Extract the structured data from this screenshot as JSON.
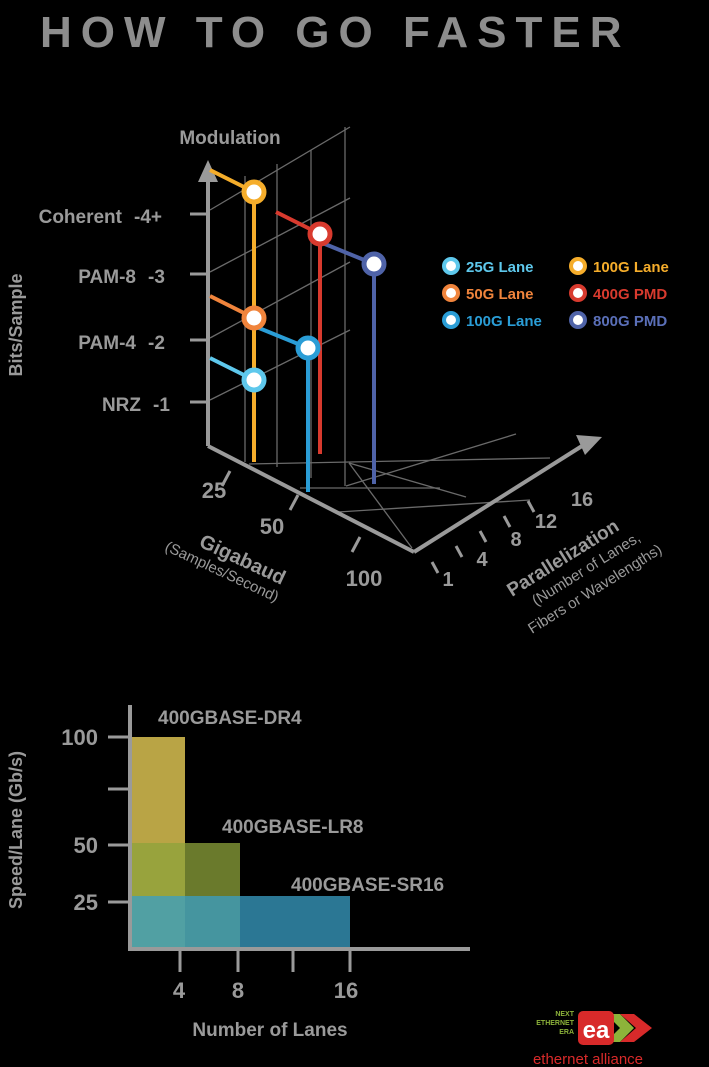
{
  "title": "HOW TO GO FASTER",
  "chart_data": [
    {
      "type": "scatter",
      "subtype": "3d-stem",
      "z_axis": {
        "title": "Modulation",
        "side_label": "Bits/Sample",
        "ticks": [
          {
            "name": "NRZ",
            "value": 1,
            "label": "-1"
          },
          {
            "name": "PAM-4",
            "value": 2,
            "label": "-2"
          },
          {
            "name": "PAM-8",
            "value": 3,
            "label": "-3"
          },
          {
            "name": "Coherent",
            "value": 4,
            "label": "-4+"
          }
        ]
      },
      "x_axis": {
        "title": "Gigabaud",
        "subtitle": "(Samples/Second)",
        "ticks": [
          "25",
          "50",
          "100"
        ]
      },
      "y_axis": {
        "title": "Parallelization",
        "subtitle_line1": "(Number of Lanes,",
        "subtitle_line2": "Fibers or Wavelengths)",
        "ticks": [
          "1",
          "4",
          "8",
          "12",
          "16"
        ]
      },
      "legend": {
        "placement": "right",
        "items": [
          {
            "label": "25G Lane",
            "color": "#5ec8ec",
            "fill": "#ffffff"
          },
          {
            "label": "100G Lane",
            "color": "#f5ad2b",
            "fill": "#ffffff"
          },
          {
            "label": "50G Lane",
            "color": "#f0843c",
            "fill": "#ffffff"
          },
          {
            "label": "400G PMD",
            "color": "#d83a2e",
            "fill": "#ffffff"
          },
          {
            "label": "100G Lane",
            "color": "#2a9dd6",
            "fill": "#ffffff"
          },
          {
            "label": "800G PMD",
            "color": "#4f63a8",
            "fill": "#ffffff"
          }
        ]
      },
      "points": [
        {
          "series": "25G Lane",
          "gigabaud": 25,
          "lanes": 1,
          "bits_per_sample": 1,
          "color": "#5ec8ec"
        },
        {
          "series": "50G Lane",
          "gigabaud": 25,
          "lanes": 1,
          "bits_per_sample": 2,
          "color": "#f0843c"
        },
        {
          "series": "100G Lane",
          "gigabaud": 25,
          "lanes": 1,
          "bits_per_sample": 4,
          "color": "#f5ad2b"
        },
        {
          "series": "100G Lane",
          "gigabaud": 50,
          "lanes": 1,
          "bits_per_sample": 2,
          "color": "#2a9dd6"
        },
        {
          "series": "400G PMD",
          "gigabaud": 25,
          "lanes": 4,
          "bits_per_sample": 3,
          "color": "#d83a2e"
        },
        {
          "series": "800G PMD",
          "gigabaud": 50,
          "lanes": 4,
          "bits_per_sample": 3,
          "color": "#4f63a8"
        }
      ]
    },
    {
      "type": "bar",
      "subtype": "step-area",
      "xlabel": "Number of Lanes",
      "ylabel": "Speed/Lane (Gb/s)",
      "x_ticks": [
        "4",
        "8",
        "16"
      ],
      "y_ticks": [
        "25",
        "50",
        "100"
      ],
      "series": [
        {
          "name": "400GBASE-DR4",
          "lanes": 4,
          "speed_per_lane": 100,
          "color": "#cdb64d"
        },
        {
          "name": "400GBASE-LR8",
          "lanes": 8,
          "speed_per_lane": 50,
          "color": "#8ea33b"
        },
        {
          "name": "400GBASE-SR16",
          "lanes": 16,
          "speed_per_lane": 25,
          "color": "#3a9fc6"
        }
      ]
    }
  ],
  "logo": {
    "line1": "NEXT",
    "line2": "ETHERNET",
    "line3": "ERA",
    "mark": "ea",
    "name": "ethernet alliance"
  }
}
